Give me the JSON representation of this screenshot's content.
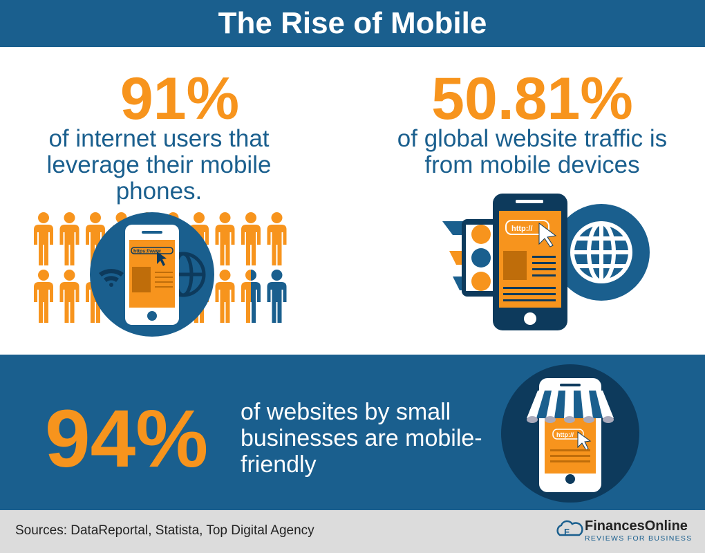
{
  "header": {
    "title": "The Rise of Mobile"
  },
  "stat1": {
    "value": "91%",
    "text": "of internet users that leverage their mobile phones.",
    "url_text": "https://www",
    "share": 0.91
  },
  "stat2": {
    "value": "50.81%",
    "text": "of global website traffic is from mobile devices",
    "url_text": "http://"
  },
  "stat3": {
    "value": "94%",
    "text": "of  websites by small businesses are mobile-friendly",
    "url_text": "http://"
  },
  "footer": {
    "sources": "Sources: DataReportal, Statista, Top Digital Agency",
    "brand": "FinancesOnline",
    "brand_tagline": "REVIEWS FOR BUSINESS"
  },
  "colors": {
    "blue": "#1a5f8e",
    "orange": "#f7941d",
    "navy": "#0d3a5c",
    "gray": "#dcdcdc"
  }
}
